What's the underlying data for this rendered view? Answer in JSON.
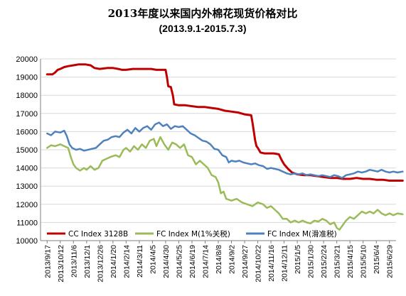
{
  "colors": {
    "cc": "#C00000",
    "fc_m1": "#9BBB59",
    "fc_m": "#4F81BD",
    "grid": "#D9D9D9",
    "axis": "#808080"
  },
  "chart_data": {
    "type": "line",
    "title": "2013年度以来国内外棉花现货价格对比",
    "subtitle": "(2013.9.1-2015.7.3)",
    "xlabel": "",
    "ylabel": "",
    "ylim": [
      10000,
      20000
    ],
    "yticks": [
      10000,
      11000,
      12000,
      13000,
      14000,
      15000,
      16000,
      17000,
      18000,
      19000,
      20000
    ],
    "grid": "horizontal",
    "legend_position": "bottom",
    "categories": [
      "2013/9/17",
      "2013/10/12",
      "2013/11/6",
      "2013/12/1",
      "2013/12/26",
      "2014/1/20",
      "2014/2/14",
      "2014/3/11",
      "2014/4/5",
      "2014/4/30",
      "2014/5/25",
      "2014/6/19",
      "2014/7/14",
      "2014/8/8",
      "2014/9/2",
      "2014/9/27",
      "2014/10/22",
      "2014/11/16",
      "2014/12/11",
      "2015/1/5",
      "2015/1/30",
      "2015/2/24",
      "2015/3/21",
      "2015/4/15",
      "2015/5/10",
      "2015/6/4",
      "2015/6/29"
    ],
    "series": [
      {
        "name": "CC Index 3128B",
        "color_key": "cc",
        "points": [
          [
            0,
            19150
          ],
          [
            0.4,
            19150
          ],
          [
            0.6,
            19250
          ],
          [
            0.8,
            19400
          ],
          [
            1.0,
            19450
          ],
          [
            1.3,
            19550
          ],
          [
            1.6,
            19600
          ],
          [
            2.0,
            19650
          ],
          [
            2.4,
            19700
          ],
          [
            2.9,
            19700
          ],
          [
            3.3,
            19650
          ],
          [
            3.6,
            19500
          ],
          [
            4.0,
            19450
          ],
          [
            4.6,
            19500
          ],
          [
            5.0,
            19500
          ],
          [
            5.4,
            19450
          ],
          [
            5.7,
            19400
          ],
          [
            6.0,
            19400
          ],
          [
            6.5,
            19450
          ],
          [
            7.0,
            19450
          ],
          [
            7.5,
            19450
          ],
          [
            7.9,
            19450
          ],
          [
            8.3,
            19400
          ],
          [
            8.8,
            19400
          ],
          [
            9.0,
            19400
          ],
          [
            9.1,
            19000
          ],
          [
            9.2,
            18500
          ],
          [
            9.4,
            18450
          ],
          [
            9.55,
            18000
          ],
          [
            9.65,
            17500
          ],
          [
            10.0,
            17450
          ],
          [
            10.5,
            17450
          ],
          [
            11.0,
            17400
          ],
          [
            11.5,
            17350
          ],
          [
            12.0,
            17350
          ],
          [
            12.5,
            17300
          ],
          [
            13.0,
            17250
          ],
          [
            13.5,
            17150
          ],
          [
            14.0,
            17100
          ],
          [
            14.5,
            17050
          ],
          [
            15.0,
            16950
          ],
          [
            15.5,
            16900
          ],
          [
            15.6,
            16500
          ],
          [
            15.7,
            16000
          ],
          [
            15.8,
            15500
          ],
          [
            15.9,
            15200
          ],
          [
            16.0,
            15100
          ],
          [
            16.2,
            14850
          ],
          [
            16.5,
            14800
          ],
          [
            16.8,
            14800
          ],
          [
            17.2,
            14800
          ],
          [
            17.6,
            14750
          ],
          [
            17.8,
            14450
          ],
          [
            18.0,
            14200
          ],
          [
            18.3,
            13950
          ],
          [
            18.6,
            13750
          ],
          [
            19.0,
            13650
          ],
          [
            19.5,
            13600
          ],
          [
            20.0,
            13600
          ],
          [
            20.5,
            13550
          ],
          [
            21.0,
            13500
          ],
          [
            21.5,
            13450
          ],
          [
            22.0,
            13450
          ],
          [
            22.5,
            13400
          ],
          [
            23.0,
            13400
          ],
          [
            23.5,
            13450
          ],
          [
            24.0,
            13400
          ],
          [
            24.5,
            13400
          ],
          [
            25.0,
            13350
          ],
          [
            25.5,
            13350
          ],
          [
            26.0,
            13300
          ],
          [
            26.5,
            13300
          ],
          [
            27.0,
            13300
          ]
        ]
      },
      {
        "name": "FC Index M(1%关税)",
        "color_key": "fc_m1",
        "points": [
          [
            0,
            15100
          ],
          [
            0.3,
            15250
          ],
          [
            0.6,
            15200
          ],
          [
            1.0,
            15300
          ],
          [
            1.3,
            15200
          ],
          [
            1.6,
            15100
          ],
          [
            1.8,
            14600
          ],
          [
            2.0,
            14200
          ],
          [
            2.2,
            14000
          ],
          [
            2.5,
            13850
          ],
          [
            2.8,
            14000
          ],
          [
            3.0,
            13900
          ],
          [
            3.3,
            14100
          ],
          [
            3.6,
            13900
          ],
          [
            3.9,
            14000
          ],
          [
            4.2,
            14400
          ],
          [
            4.5,
            14500
          ],
          [
            4.8,
            14600
          ],
          [
            5.2,
            14700
          ],
          [
            5.5,
            14600
          ],
          [
            5.8,
            15000
          ],
          [
            6.0,
            15100
          ],
          [
            6.3,
            14900
          ],
          [
            6.6,
            15200
          ],
          [
            6.9,
            15000
          ],
          [
            7.2,
            15300
          ],
          [
            7.5,
            15100
          ],
          [
            7.8,
            15500
          ],
          [
            8.1,
            15600
          ],
          [
            8.3,
            15200
          ],
          [
            8.6,
            15700
          ],
          [
            8.9,
            15300
          ],
          [
            9.2,
            15000
          ],
          [
            9.5,
            15400
          ],
          [
            9.8,
            15300
          ],
          [
            10.1,
            15100
          ],
          [
            10.4,
            15300
          ],
          [
            10.7,
            14700
          ],
          [
            11.0,
            14600
          ],
          [
            11.3,
            14200
          ],
          [
            11.6,
            14400
          ],
          [
            11.9,
            14200
          ],
          [
            12.2,
            14000
          ],
          [
            12.5,
            13600
          ],
          [
            12.8,
            13500
          ],
          [
            13.0,
            13200
          ],
          [
            13.2,
            12600
          ],
          [
            13.4,
            12700
          ],
          [
            13.6,
            12300
          ],
          [
            14.0,
            12200
          ],
          [
            14.4,
            12300
          ],
          [
            14.8,
            12100
          ],
          [
            15.2,
            12000
          ],
          [
            15.6,
            11900
          ],
          [
            16.0,
            12100
          ],
          [
            16.4,
            12000
          ],
          [
            16.7,
            11800
          ],
          [
            17.0,
            11900
          ],
          [
            17.3,
            11700
          ],
          [
            17.6,
            11500
          ],
          [
            17.9,
            11200
          ],
          [
            18.2,
            11200
          ],
          [
            18.5,
            11000
          ],
          [
            18.8,
            11100
          ],
          [
            19.1,
            11000
          ],
          [
            19.4,
            11100
          ],
          [
            19.7,
            11000
          ],
          [
            20.0,
            10950
          ],
          [
            20.3,
            11100
          ],
          [
            20.6,
            11050
          ],
          [
            20.9,
            11200
          ],
          [
            21.2,
            11100
          ],
          [
            21.5,
            10900
          ],
          [
            21.8,
            11000
          ],
          [
            22.0,
            10700
          ],
          [
            22.2,
            10600
          ],
          [
            22.4,
            10800
          ],
          [
            22.7,
            11100
          ],
          [
            23.0,
            11300
          ],
          [
            23.3,
            11200
          ],
          [
            23.6,
            11400
          ],
          [
            23.9,
            11600
          ],
          [
            24.2,
            11500
          ],
          [
            24.5,
            11600
          ],
          [
            24.8,
            11500
          ],
          [
            25.1,
            11700
          ],
          [
            25.4,
            11500
          ],
          [
            25.7,
            11400
          ],
          [
            26.0,
            11500
          ],
          [
            26.3,
            11400
          ],
          [
            26.6,
            11500
          ],
          [
            27.0,
            11450
          ]
        ]
      },
      {
        "name": "FC Index M(滑准税)",
        "color_key": "fc_m",
        "points": [
          [
            0,
            15900
          ],
          [
            0.3,
            15800
          ],
          [
            0.6,
            16000
          ],
          [
            1.0,
            15950
          ],
          [
            1.3,
            16050
          ],
          [
            1.5,
            15750
          ],
          [
            1.7,
            15300
          ],
          [
            1.9,
            15100
          ],
          [
            2.2,
            15000
          ],
          [
            2.5,
            15050
          ],
          [
            2.8,
            14950
          ],
          [
            3.1,
            15000
          ],
          [
            3.4,
            15050
          ],
          [
            3.7,
            15100
          ],
          [
            4.0,
            15300
          ],
          [
            4.3,
            15500
          ],
          [
            4.6,
            15550
          ],
          [
            4.9,
            15700
          ],
          [
            5.2,
            15750
          ],
          [
            5.5,
            15700
          ],
          [
            5.8,
            15950
          ],
          [
            6.1,
            16100
          ],
          [
            6.4,
            15900
          ],
          [
            6.7,
            16200
          ],
          [
            7.0,
            16000
          ],
          [
            7.3,
            16200
          ],
          [
            7.6,
            16300
          ],
          [
            7.9,
            16100
          ],
          [
            8.2,
            16400
          ],
          [
            8.5,
            16500
          ],
          [
            8.8,
            16300
          ],
          [
            9.1,
            16400
          ],
          [
            9.4,
            16150
          ],
          [
            9.7,
            16300
          ],
          [
            10.0,
            16250
          ],
          [
            10.3,
            16300
          ],
          [
            10.6,
            16100
          ],
          [
            10.9,
            15900
          ],
          [
            11.2,
            15800
          ],
          [
            11.5,
            15650
          ],
          [
            11.8,
            15500
          ],
          [
            12.1,
            15450
          ],
          [
            12.4,
            15300
          ],
          [
            12.7,
            15050
          ],
          [
            13.0,
            15000
          ],
          [
            13.3,
            14700
          ],
          [
            13.6,
            14600
          ],
          [
            13.8,
            14300
          ],
          [
            14.0,
            14400
          ],
          [
            14.3,
            14350
          ],
          [
            14.6,
            14400
          ],
          [
            14.9,
            14300
          ],
          [
            15.2,
            14250
          ],
          [
            15.5,
            14200
          ],
          [
            15.8,
            14250
          ],
          [
            16.1,
            14150
          ],
          [
            16.4,
            14100
          ],
          [
            16.7,
            13950
          ],
          [
            17.0,
            14000
          ],
          [
            17.3,
            13950
          ],
          [
            17.6,
            13900
          ],
          [
            17.9,
            13800
          ],
          [
            18.2,
            13700
          ],
          [
            18.5,
            13650
          ],
          [
            18.8,
            13700
          ],
          [
            19.1,
            13650
          ],
          [
            19.4,
            13700
          ],
          [
            19.7,
            13600
          ],
          [
            20.0,
            13650
          ],
          [
            20.3,
            13600
          ],
          [
            20.6,
            13550
          ],
          [
            20.9,
            13600
          ],
          [
            21.2,
            13550
          ],
          [
            21.5,
            13500
          ],
          [
            21.8,
            13600
          ],
          [
            22.1,
            13550
          ],
          [
            22.4,
            13450
          ],
          [
            22.7,
            13600
          ],
          [
            23.0,
            13650
          ],
          [
            23.3,
            13700
          ],
          [
            23.6,
            13800
          ],
          [
            23.9,
            13750
          ],
          [
            24.2,
            13800
          ],
          [
            24.5,
            13900
          ],
          [
            24.8,
            13850
          ],
          [
            25.1,
            13800
          ],
          [
            25.4,
            13900
          ],
          [
            25.7,
            13800
          ],
          [
            26.0,
            13750
          ],
          [
            26.3,
            13800
          ],
          [
            26.6,
            13750
          ],
          [
            27.0,
            13800
          ]
        ]
      }
    ]
  }
}
